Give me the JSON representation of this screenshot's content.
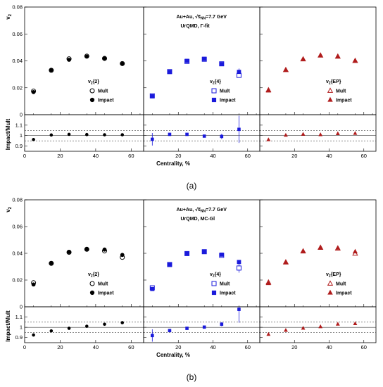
{
  "figure": {
    "colors": {
      "left": "#000000",
      "middle": "#1a1adb",
      "right": "#b01c1c",
      "ref": "#555555"
    },
    "y_title": "v",
    "y_title_sub": "2",
    "ratio_title": "Impact/Mult",
    "x_title": "Centrality, %",
    "x_ticks": [
      "0",
      "20",
      "40",
      "60"
    ],
    "x_tick_values": [
      0,
      20,
      40,
      60
    ],
    "top_y_ticks": [
      "0",
      "0.02",
      "0.04",
      "0.06",
      "0.08"
    ],
    "top_y_tick_values": [
      0,
      0.02,
      0.04,
      0.06,
      0.08
    ],
    "ratio_y_ticks": [
      "0.9",
      "1",
      "1.1"
    ],
    "ratio_y_tick_values": [
      0.9,
      1.0,
      1.1
    ],
    "ratio_ref_lines": [
      1.0,
      0.95,
      1.05
    ],
    "panel_legends": [
      {
        "title": "v",
        "sub": "2",
        "suffix": "{2}",
        "open": "Mult",
        "filled": "Impact",
        "marker": "circle"
      },
      {
        "title": "v",
        "sub": "2",
        "suffix": "{4}",
        "open": "Mult",
        "filled": "Impact",
        "marker": "square"
      },
      {
        "title": "v",
        "sub": "2",
        "suffix": "{EP}",
        "open": "Mult",
        "filled": "Impact",
        "marker": "triangle"
      }
    ]
  },
  "chart_data": [
    {
      "type": "scatter",
      "label": "(a)",
      "info_line1": "Au+Au, ",
      "info_sqrt": "s",
      "info_sqrt_sub": "NN",
      "info_line1_end": "=7.7 GeV",
      "info_line2": "UrQMD, Γ-fit",
      "xlim": [
        0,
        67
      ],
      "ylim": [
        0,
        0.08
      ],
      "ratio_ylim": [
        0.85,
        1.2
      ],
      "x": [
        5,
        15,
        25,
        35,
        45,
        55
      ],
      "panels": [
        {
          "method": "v2{2}",
          "mult": [
            0.0175,
            0.033,
            0.0415,
            0.0435,
            0.0418,
            0.038
          ],
          "impact": [
            0.0168,
            0.0332,
            0.0408,
            0.0432,
            0.042,
            0.0378
          ],
          "ratio": [
            0.962,
            1.006,
            1.012,
            1.01,
            1.008,
            1.008
          ]
        },
        {
          "method": "v2{4}",
          "mult": [
            0.014,
            0.032,
            0.0396,
            0.0412,
            0.0378,
            0.0292
          ],
          "impact": [
            0.0137,
            0.0318,
            0.04,
            0.0415,
            0.0376,
            0.0318
          ],
          "impact_err": [
            0.001,
            0.0008,
            0.0007,
            0.0007,
            0.0009,
            0.0025
          ],
          "ratio": [
            0.965,
            1.012,
            1.012,
            0.995,
            0.992,
            1.06
          ],
          "ratio_err": [
            0.06,
            0.01,
            0.01,
            0.01,
            0.025,
            0.13
          ]
        },
        {
          "method": "v2{EP}",
          "mult": [
            0.0182,
            0.0332,
            0.0412,
            0.044,
            0.0432,
            0.04
          ],
          "impact": [
            0.0178,
            0.0332,
            0.0412,
            0.044,
            0.043,
            0.04
          ],
          "ratio": [
            0.96,
            1.003,
            1.012,
            1.008,
            1.018,
            1.02
          ]
        }
      ]
    },
    {
      "type": "scatter",
      "label": "(b)",
      "info_line1": "Au+Au, ",
      "info_sqrt": "s",
      "info_sqrt_sub": "NN",
      "info_line1_end": "=7.7 GeV",
      "info_line2": "UrQMD, MC-Gl",
      "xlim": [
        0,
        67
      ],
      "ylim": [
        0,
        0.08
      ],
      "ratio_ylim": [
        0.85,
        1.2
      ],
      "x": [
        5,
        15,
        25,
        35,
        45,
        55
      ],
      "panels": [
        {
          "method": "v2{2}",
          "mult": [
            0.018,
            0.0325,
            0.0408,
            0.043,
            0.0418,
            0.037
          ],
          "impact": [
            0.0167,
            0.0327,
            0.041,
            0.0432,
            0.0428,
            0.0388
          ],
          "ratio": [
            0.925,
            0.965,
            0.99,
            1.01,
            1.03,
            1.045
          ]
        },
        {
          "method": "v2{4}",
          "mult": [
            0.0142,
            0.0316,
            0.0398,
            0.0412,
            0.0385,
            0.029
          ],
          "impact": [
            0.0133,
            0.0315,
            0.0398,
            0.0412,
            0.039,
            0.0335
          ],
          "mult_err": [
            0.001,
            0.0008,
            0.0007,
            0.0007,
            0.0009,
            0.0035
          ],
          "ratio": [
            0.92,
            0.968,
            0.99,
            1.002,
            1.03,
            1.175
          ],
          "ratio_err": [
            0.06,
            0.01,
            0.01,
            0.01,
            0.02,
            0.13
          ]
        },
        {
          "method": "v2{EP}",
          "mult": [
            0.0182,
            0.0333,
            0.0415,
            0.0442,
            0.0436,
            0.0398
          ],
          "impact": [
            0.0175,
            0.033,
            0.0412,
            0.044,
            0.044,
            0.0412
          ],
          "ratio": [
            0.93,
            0.97,
            0.99,
            1.005,
            1.03,
            1.035
          ]
        }
      ]
    }
  ]
}
